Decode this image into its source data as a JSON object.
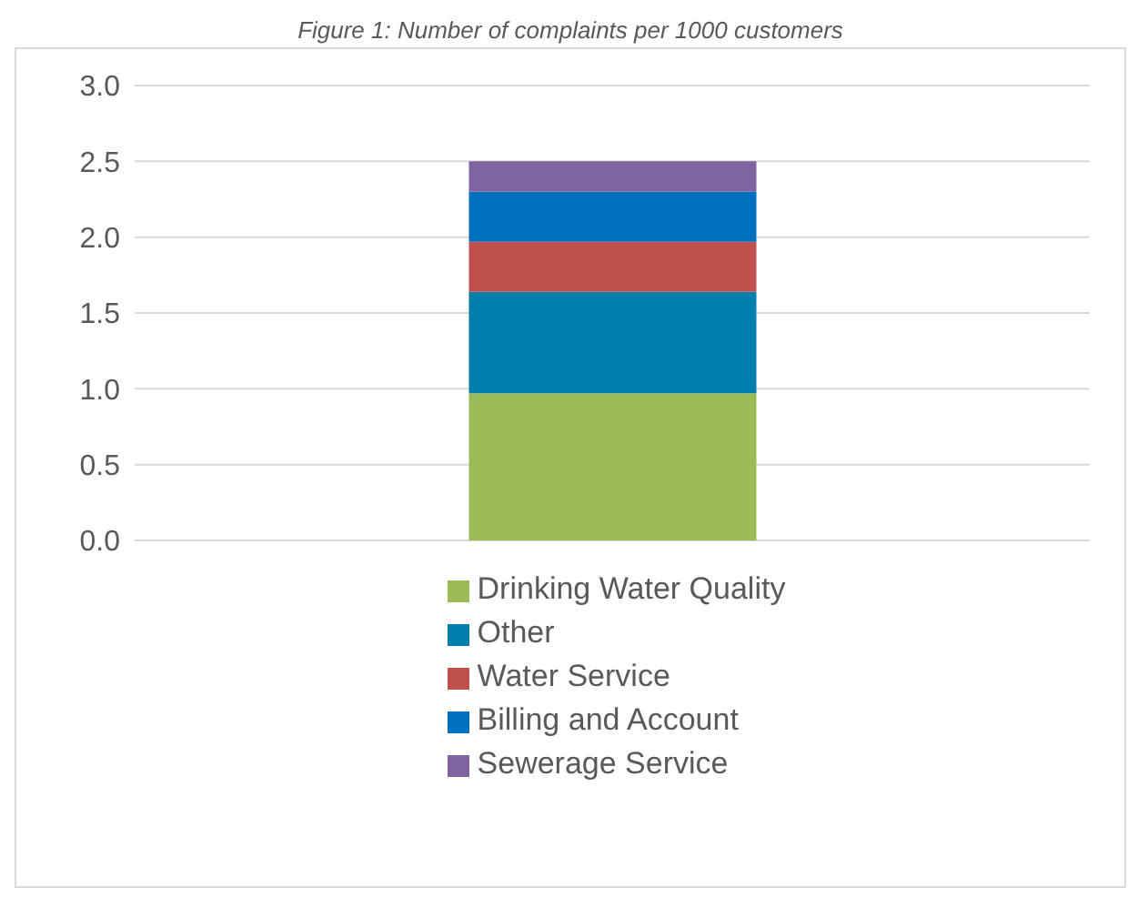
{
  "chart_data": {
    "type": "bar",
    "title": "Figure 1: Number of complaints per 1000 customers",
    "categories": [
      null
    ],
    "stacked": true,
    "series": [
      {
        "name": "Drinking Water Quality",
        "color": "#9bbb59",
        "values": [
          0.97
        ]
      },
      {
        "name": "Other",
        "color": "#007fac",
        "values": [
          0.67
        ]
      },
      {
        "name": "Water Service",
        "color": "#c0504d",
        "values": [
          0.33
        ]
      },
      {
        "name": "Billing and Account",
        "color": "#0070c0",
        "values": [
          0.33
        ]
      },
      {
        "name": "Sewerage Service",
        "color": "#8064a2",
        "values": [
          0.2
        ]
      }
    ],
    "ylim": [
      0,
      3
    ],
    "yticks": [
      {
        "value": 0,
        "label": "0.0"
      },
      {
        "value": 0.5,
        "label": "0.5"
      },
      {
        "value": 1,
        "label": "1.0"
      },
      {
        "value": 1.5,
        "label": "1.5"
      },
      {
        "value": 2,
        "label": "2.0"
      },
      {
        "value": 2.5,
        "label": "2.5"
      },
      {
        "value": 3,
        "label": "3.0"
      }
    ],
    "grid": "y",
    "legend": "bottom"
  }
}
